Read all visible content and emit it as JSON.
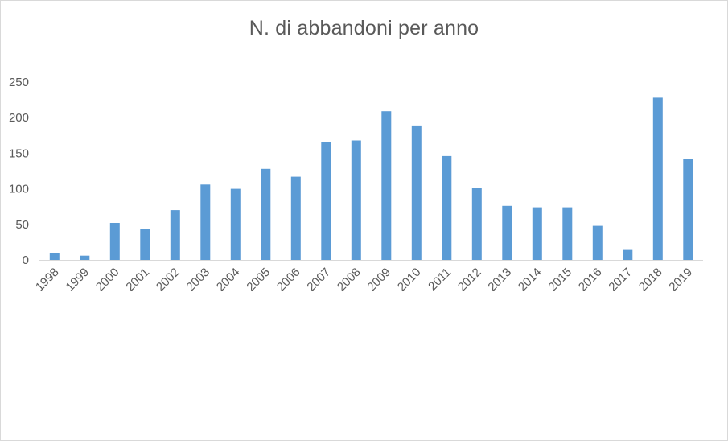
{
  "chart_data": {
    "type": "bar",
    "title": "N. di abbandoni per anno",
    "xlabel": "",
    "ylabel": "",
    "categories": [
      "1998",
      "1999",
      "2000",
      "2001",
      "2002",
      "2003",
      "2004",
      "2005",
      "2006",
      "2007",
      "2008",
      "2009",
      "2010",
      "2011",
      "2012",
      "2013",
      "2014",
      "2015",
      "2016",
      "2017",
      "2018",
      "2019"
    ],
    "values": [
      10,
      6,
      52,
      44,
      70,
      106,
      100,
      128,
      117,
      166,
      168,
      209,
      189,
      146,
      101,
      76,
      74,
      74,
      48,
      14,
      228,
      142
    ],
    "ylim": [
      0,
      250
    ],
    "yticks": [
      0,
      50,
      100,
      150,
      200,
      250
    ],
    "grid": false,
    "legend": "none",
    "bar_color": "#5b9bd5",
    "axis_color": "#d9d9d9",
    "text_color": "#595959"
  }
}
